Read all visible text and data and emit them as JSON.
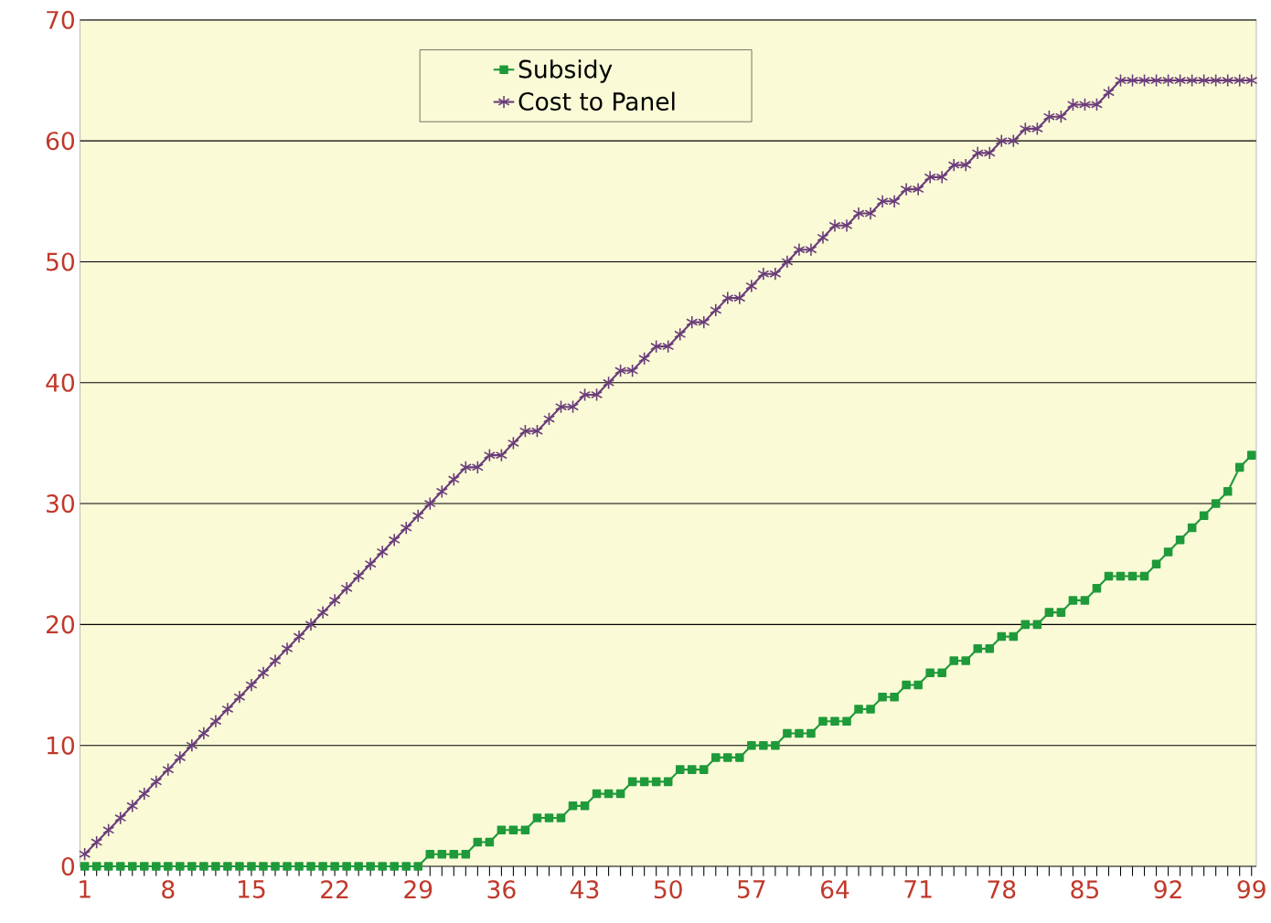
{
  "chart_data": {
    "type": "line",
    "categories": [
      "1",
      null,
      null,
      null,
      null,
      null,
      null,
      "8",
      null,
      null,
      null,
      null,
      null,
      null,
      "15",
      null,
      null,
      null,
      null,
      null,
      null,
      "22",
      null,
      null,
      null,
      null,
      null,
      null,
      "29",
      null,
      null,
      null,
      null,
      null,
      null,
      "36",
      null,
      null,
      null,
      null,
      null,
      null,
      "43",
      null,
      null,
      null,
      null,
      null,
      null,
      "50",
      null,
      null,
      null,
      null,
      null,
      null,
      "57",
      null,
      null,
      null,
      null,
      null,
      null,
      "64",
      null,
      null,
      null,
      null,
      null,
      null,
      "71",
      null,
      null,
      null,
      null,
      null,
      null,
      "78",
      null,
      null,
      null,
      null,
      null,
      null,
      "85",
      null,
      null,
      null,
      null,
      null,
      null,
      "92",
      null,
      null,
      null,
      null,
      null,
      null,
      "99"
    ],
    "series": [
      {
        "name": "Subsidy",
        "color": "#1f9a3a",
        "marker": "square",
        "values": [
          0,
          0,
          0,
          0,
          0,
          0,
          0,
          0,
          0,
          0,
          0,
          0,
          0,
          0,
          0,
          0,
          0,
          0,
          0,
          0,
          0,
          0,
          0,
          0,
          0,
          0,
          0,
          0,
          0,
          1,
          1,
          1,
          1,
          2,
          2,
          3,
          3,
          3,
          4,
          4,
          4,
          5,
          5,
          6,
          6,
          6,
          7,
          7,
          7,
          7,
          8,
          8,
          8,
          9,
          9,
          9,
          10,
          10,
          10,
          11,
          11,
          11,
          12,
          12,
          12,
          13,
          13,
          14,
          14,
          15,
          15,
          16,
          16,
          17,
          17,
          18,
          18,
          19,
          19,
          20,
          20,
          21,
          21,
          22,
          22,
          23,
          24,
          24,
          24,
          24,
          25,
          26,
          27,
          28,
          29,
          30,
          31,
          33,
          34
        ]
      },
      {
        "name": "Cost to Panel",
        "color": "#6a3d7a",
        "marker": "cross",
        "values": [
          1,
          2,
          3,
          4,
          5,
          6,
          7,
          8,
          9,
          10,
          11,
          12,
          13,
          14,
          15,
          16,
          17,
          18,
          19,
          20,
          21,
          22,
          23,
          24,
          25,
          26,
          27,
          28,
          29,
          30,
          31,
          32,
          33,
          33,
          34,
          34,
          35,
          36,
          36,
          37,
          38,
          38,
          39,
          39,
          40,
          41,
          41,
          42,
          43,
          43,
          44,
          45,
          45,
          46,
          47,
          47,
          48,
          49,
          49,
          50,
          51,
          51,
          52,
          53,
          53,
          54,
          54,
          55,
          55,
          56,
          56,
          57,
          57,
          58,
          58,
          59,
          59,
          60,
          60,
          61,
          61,
          62,
          62,
          63,
          63,
          63,
          64,
          65,
          65,
          65,
          65,
          65,
          65,
          65,
          65,
          65,
          65,
          65,
          65
        ]
      }
    ],
    "ylim": [
      0,
      70
    ],
    "yticks": [
      0,
      10,
      20,
      30,
      40,
      50,
      60,
      70
    ],
    "grid": "y",
    "legend": "top",
    "line_style": "solid"
  }
}
